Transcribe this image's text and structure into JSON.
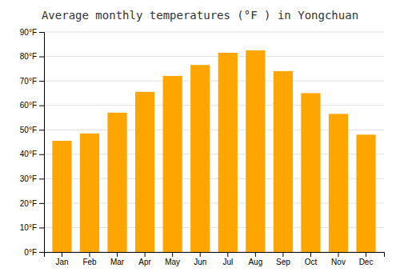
{
  "chart_data": {
    "type": "bar",
    "title": "Average monthly temperatures (°F ) in Yongchuan",
    "categories": [
      "Jan",
      "Feb",
      "Mar",
      "Apr",
      "May",
      "Jun",
      "Jul",
      "Aug",
      "Sep",
      "Oct",
      "Nov",
      "Dec"
    ],
    "values": [
      45.5,
      48.5,
      57,
      65.5,
      72,
      76.5,
      81.5,
      82.5,
      74,
      65,
      56.5,
      48
    ],
    "color": "#FFA500",
    "ylim": [
      0,
      90
    ],
    "yticks": [
      {
        "value": 0,
        "label": "0°F"
      },
      {
        "value": 10,
        "label": "10°F"
      },
      {
        "value": 20,
        "label": "20°F"
      },
      {
        "value": 30,
        "label": "30°F"
      },
      {
        "value": 40,
        "label": "40°F"
      },
      {
        "value": 50,
        "label": "50°F"
      },
      {
        "value": 60,
        "label": "60°F"
      },
      {
        "value": 70,
        "label": "70°F"
      },
      {
        "value": 80,
        "label": "80°F"
      },
      {
        "value": 90,
        "label": "90°F"
      }
    ],
    "grid": true
  }
}
